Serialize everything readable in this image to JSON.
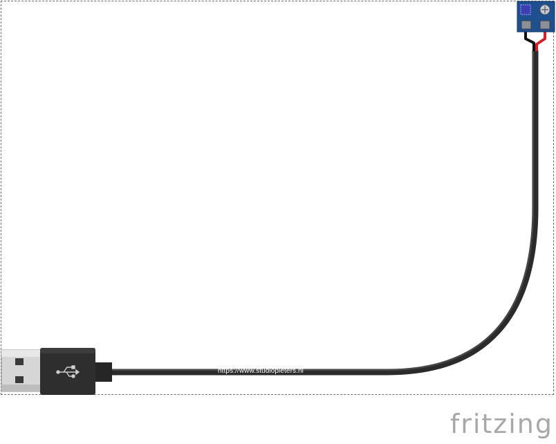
{
  "diagram": {
    "cable_url_text": "https://www.studiopieters.nl",
    "logo_text": "fritzing",
    "colors": {
      "cable": "#2b2b2b",
      "wire_black": "#111111",
      "wire_red": "#d0202a",
      "terminal_block": "#1e4f8f",
      "usb_metal": "#cfcfcf",
      "logo": "#a8a8a8"
    },
    "components": [
      {
        "name": "USB-A plug"
      },
      {
        "name": "USB cable"
      },
      {
        "name": "2-pin screw terminal"
      }
    ]
  }
}
